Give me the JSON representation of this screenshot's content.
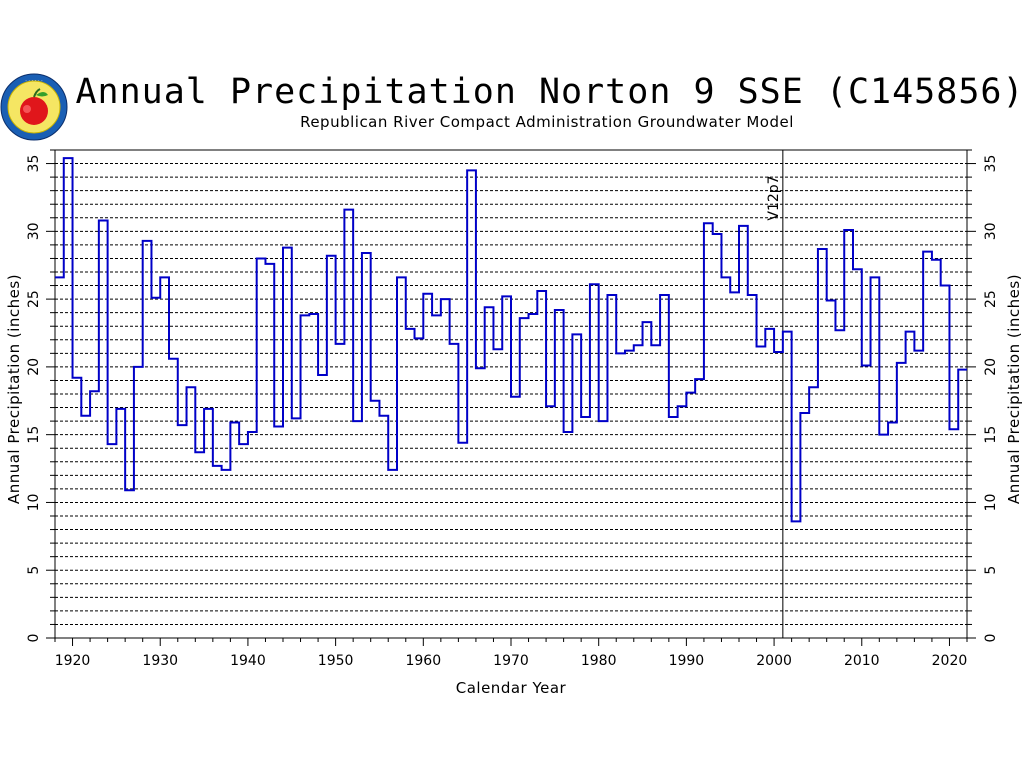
{
  "chart_data": {
    "type": "line",
    "title": "Annual Precipitation Norton 9 SSE (C145856)",
    "subtitle": "Republican River Compact Administration Groundwater Model",
    "xlabel": "Calendar Year",
    "ylabel": "Annual Precipitation (inches)",
    "ylabel_right": "Annual Precipitation (inches)",
    "xlim": [
      1918,
      2022
    ],
    "ylim": [
      0,
      36
    ],
    "x_ticks": [
      1920,
      1930,
      1940,
      1950,
      1960,
      1970,
      1980,
      1990,
      2000,
      2010,
      2020
    ],
    "y_ticks": [
      0,
      5,
      10,
      15,
      20,
      25,
      30,
      35
    ],
    "y_minor_step": 1,
    "grid": "horizontal dashed at every 1 inch",
    "step_style": "step",
    "line_color": "#0000c8",
    "annotation": {
      "label": "V12p7",
      "x": 2001
    },
    "series": [
      {
        "x": [
          1918,
          1919,
          1920,
          1921,
          1922,
          1923,
          1924,
          1925,
          1926,
          1927,
          1928,
          1929,
          1930,
          1931,
          1932,
          1933,
          1934,
          1935,
          1936,
          1937,
          1938,
          1939,
          1940,
          1941,
          1942,
          1943,
          1944,
          1945,
          1946,
          1947,
          1948,
          1949,
          1950,
          1951,
          1952,
          1953,
          1954,
          1955,
          1956,
          1957,
          1958,
          1959,
          1960,
          1961,
          1962,
          1963,
          1964,
          1965,
          1966,
          1967,
          1968,
          1969,
          1970,
          1971,
          1972,
          1973,
          1974,
          1975,
          1976,
          1977,
          1978,
          1979,
          1980,
          1981,
          1982,
          1983,
          1984,
          1985,
          1986,
          1987,
          1988,
          1989,
          1990,
          1991,
          1992,
          1993,
          1994,
          1995,
          1996,
          1997,
          1998,
          1999,
          2000,
          2001,
          2002,
          2003,
          2004,
          2005,
          2006,
          2007,
          2008,
          2009,
          2010,
          2011,
          2012,
          2013,
          2014,
          2015,
          2016,
          2017,
          2018,
          2019,
          2020,
          2021
        ],
        "values": [
          26.6,
          35.4,
          19.2,
          16.4,
          18.2,
          30.8,
          14.3,
          16.9,
          10.9,
          20.0,
          29.3,
          25.1,
          26.6,
          20.6,
          15.7,
          18.5,
          13.7,
          16.9,
          12.7,
          12.4,
          15.9,
          14.3,
          15.2,
          28.0,
          27.6,
          15.6,
          28.8,
          16.2,
          23.8,
          23.9,
          19.4,
          28.2,
          21.7,
          31.6,
          16.0,
          28.4,
          17.5,
          16.4,
          12.4,
          26.6,
          22.8,
          22.1,
          25.4,
          23.8,
          25.0,
          21.7,
          14.4,
          34.5,
          19.9,
          24.4,
          21.3,
          25.2,
          17.8,
          23.6,
          23.9,
          25.6,
          17.1,
          24.2,
          15.2,
          22.4,
          16.3,
          26.1,
          16.0,
          25.3,
          21.0,
          21.2,
          21.6,
          23.3,
          21.6,
          25.3,
          16.3,
          17.1,
          18.1,
          19.1,
          30.6,
          29.8,
          26.6,
          25.5,
          30.4,
          25.3,
          21.5,
          22.8,
          21.1,
          22.6,
          8.6,
          16.6,
          18.5,
          28.7,
          24.9,
          22.7,
          30.1,
          27.2,
          20.1,
          26.6,
          15.0,
          15.9,
          20.3,
          22.6,
          21.2,
          28.5,
          27.9,
          26.0,
          15.4,
          19.8
        ]
      }
    ]
  },
  "logo": {
    "label": "Republican River seal",
    "colors": {
      "ring": "#1a5fb4",
      "inner": "#f5e663",
      "apple": "#e0161b"
    }
  }
}
